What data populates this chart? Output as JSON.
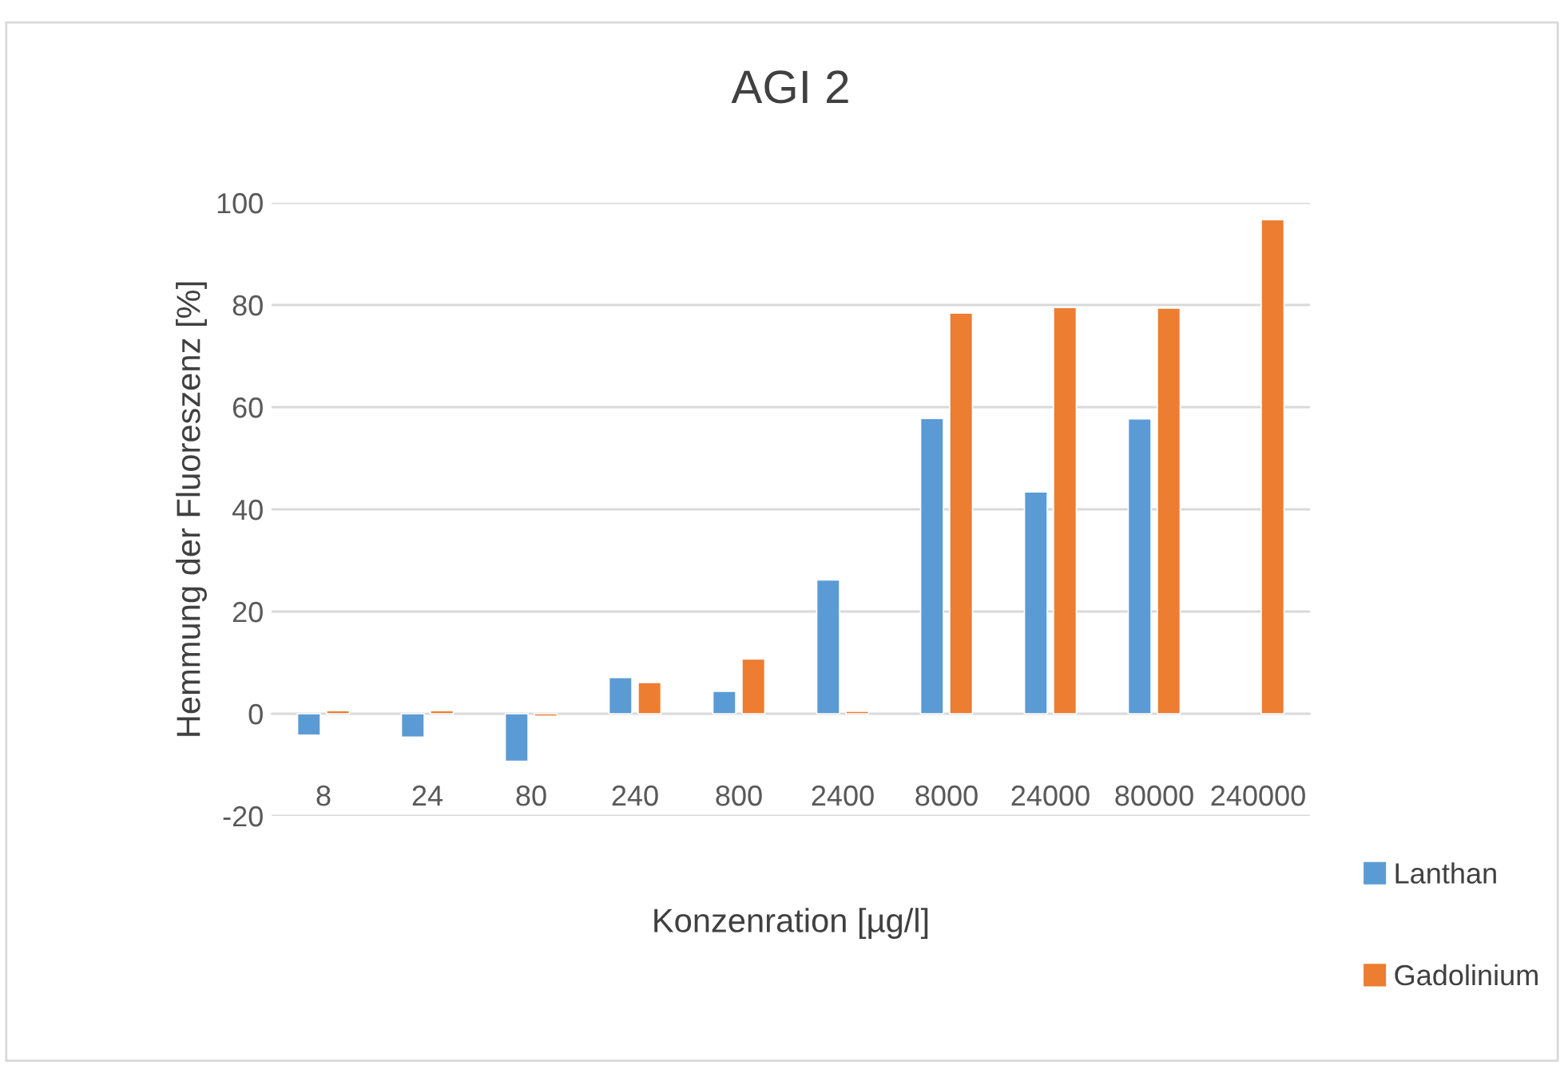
{
  "chart_data": {
    "type": "bar",
    "title": "AGI 2",
    "xlabel": "Konzenration [µg/l]",
    "ylabel": "Hemmung der Fluoreszenz [%]",
    "categories": [
      "8",
      "24",
      "80",
      "240",
      "800",
      "2400",
      "8000",
      "24000",
      "80000",
      "240000"
    ],
    "series": [
      {
        "name": "Lanthan",
        "color": "#5b9bd5",
        "values": [
          -4.2,
          -4.6,
          -9.3,
          7.1,
          4.4,
          26.2,
          57.8,
          43.4,
          57.7,
          null
        ]
      },
      {
        "name": "Gadolinium",
        "color": "#ed7d31",
        "values": [
          0.6,
          0.6,
          -0.5,
          6.1,
          10.7,
          0.5,
          78.4,
          79.5,
          79.4,
          96.7
        ]
      }
    ],
    "ylim": [
      -20,
      100
    ],
    "yticks": [
      -20,
      0,
      20,
      40,
      60,
      80,
      100
    ],
    "grid": "y",
    "legend": "bottom right"
  }
}
